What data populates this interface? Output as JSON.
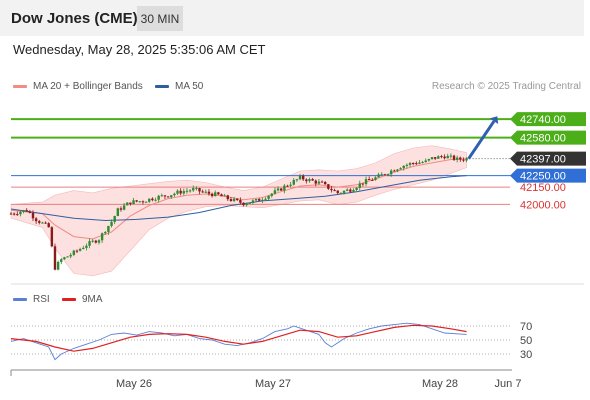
{
  "header": {
    "title": "Dow Jones (CME)",
    "timeframe": "30 MIN"
  },
  "datetime": "Wednesday, May 28, 2025 5:35:06 AM CET",
  "legend": {
    "ma_bb": {
      "label": "MA 20 + Bollinger Bands",
      "color": "#f28b82"
    },
    "ma50": {
      "label": "MA 50",
      "color": "#2f5f9e"
    },
    "credit": "Research © 2025 Trading Central"
  },
  "rsi_legend": {
    "rsi": {
      "label": "RSI",
      "color": "#5b7fd6"
    },
    "ma9": {
      "label": "9MA",
      "color": "#e02020"
    }
  },
  "colors": {
    "candle_up": "#2e8b2e",
    "candle_down": "#8b1a1a",
    "band_fill": "#fde0e0",
    "resistance_line": "#4caf1a",
    "pivot_line": "#2f6fd6",
    "support_line": "#e88080",
    "current_label": "#333333",
    "arrow": "#2f5fae"
  },
  "chart_data": [
    {
      "type": "candlestick",
      "x_labels": [
        "May 26",
        "May 27",
        "May 28",
        "Jun 7"
      ],
      "ylim": [
        41300,
        42950
      ],
      "current_price": {
        "value": 42397.0,
        "label": "42397.00"
      },
      "levels": [
        {
          "value": 42740,
          "label": "42740.00",
          "kind": "resistance"
        },
        {
          "value": 42580,
          "label": "42580.00",
          "kind": "resistance"
        },
        {
          "value": 42250,
          "label": "42250.00",
          "kind": "pivot"
        },
        {
          "value": 42150,
          "label": "42150.00",
          "kind": "support"
        },
        {
          "value": 42000,
          "label": "42000.00",
          "kind": "support"
        }
      ],
      "close_path": [
        [
          0,
          41920
        ],
        [
          5,
          41950
        ],
        [
          8,
          41870
        ],
        [
          12,
          41800
        ],
        [
          14,
          41450
        ],
        [
          16,
          41520
        ],
        [
          20,
          41580
        ],
        [
          24,
          41650
        ],
        [
          28,
          41700
        ],
        [
          30,
          41780
        ],
        [
          32,
          41850
        ],
        [
          34,
          41950
        ],
        [
          38,
          42020
        ],
        [
          42,
          42030
        ],
        [
          46,
          42060
        ],
        [
          50,
          42080
        ],
        [
          54,
          42110
        ],
        [
          58,
          42130
        ],
        [
          62,
          42100
        ],
        [
          66,
          42080
        ],
        [
          70,
          42040
        ],
        [
          74,
          42010
        ],
        [
          78,
          42030
        ],
        [
          82,
          42080
        ],
        [
          85,
          42120
        ],
        [
          88,
          42170
        ],
        [
          92,
          42230
        ],
        [
          95,
          42210
        ],
        [
          99,
          42180
        ],
        [
          100,
          42160
        ],
        [
          104,
          42100
        ],
        [
          108,
          42130
        ],
        [
          112,
          42190
        ],
        [
          116,
          42230
        ],
        [
          120,
          42280
        ],
        [
          124,
          42330
        ],
        [
          128,
          42360
        ],
        [
          132,
          42370
        ],
        [
          134,
          42400
        ],
        [
          138,
          42420
        ],
        [
          142,
          42390
        ],
        [
          145,
          42397
        ]
      ],
      "ma50_path": [
        [
          0,
          41960
        ],
        [
          10,
          41920
        ],
        [
          20,
          41880
        ],
        [
          30,
          41860
        ],
        [
          40,
          41870
        ],
        [
          50,
          41890
        ],
        [
          60,
          41930
        ],
        [
          70,
          41990
        ],
        [
          80,
          42030
        ],
        [
          90,
          42050
        ],
        [
          100,
          42070
        ],
        [
          110,
          42110
        ],
        [
          120,
          42160
        ],
        [
          130,
          42210
        ],
        [
          140,
          42240
        ],
        [
          145,
          42250
        ]
      ],
      "ma20_path": [
        [
          0,
          41950
        ],
        [
          10,
          41920
        ],
        [
          14,
          41820
        ],
        [
          20,
          41720
        ],
        [
          26,
          41700
        ],
        [
          32,
          41760
        ],
        [
          38,
          41900
        ],
        [
          44,
          41990
        ],
        [
          50,
          42050
        ],
        [
          56,
          42080
        ],
        [
          62,
          42090
        ],
        [
          68,
          42070
        ],
        [
          74,
          42040
        ],
        [
          80,
          42060
        ],
        [
          86,
          42110
        ],
        [
          92,
          42160
        ],
        [
          98,
          42170
        ],
        [
          104,
          42150
        ],
        [
          110,
          42170
        ],
        [
          116,
          42220
        ],
        [
          122,
          42280
        ],
        [
          128,
          42330
        ],
        [
          134,
          42360
        ],
        [
          140,
          42390
        ],
        [
          145,
          42395
        ]
      ],
      "bb_upper": [
        [
          0,
          42000
        ],
        [
          10,
          42020
        ],
        [
          14,
          42080
        ],
        [
          20,
          42120
        ],
        [
          26,
          42100
        ],
        [
          32,
          42140
        ],
        [
          38,
          42160
        ],
        [
          44,
          42180
        ],
        [
          50,
          42200
        ],
        [
          56,
          42210
        ],
        [
          62,
          42190
        ],
        [
          68,
          42150
        ],
        [
          74,
          42120
        ],
        [
          80,
          42150
        ],
        [
          86,
          42220
        ],
        [
          92,
          42290
        ],
        [
          98,
          42300
        ],
        [
          104,
          42290
        ],
        [
          110,
          42310
        ],
        [
          116,
          42360
        ],
        [
          122,
          42440
        ],
        [
          128,
          42490
        ],
        [
          134,
          42510
        ],
        [
          140,
          42480
        ],
        [
          145,
          42450
        ]
      ],
      "bb_lower": [
        [
          0,
          41880
        ],
        [
          10,
          41800
        ],
        [
          14,
          41620
        ],
        [
          20,
          41400
        ],
        [
          26,
          41380
        ],
        [
          32,
          41420
        ],
        [
          38,
          41600
        ],
        [
          44,
          41780
        ],
        [
          50,
          41880
        ],
        [
          56,
          41940
        ],
        [
          62,
          41980
        ],
        [
          68,
          41990
        ],
        [
          74,
          41980
        ],
        [
          80,
          41970
        ],
        [
          86,
          42000
        ],
        [
          92,
          42030
        ],
        [
          98,
          42040
        ],
        [
          104,
          42000
        ],
        [
          110,
          42020
        ],
        [
          116,
          42080
        ],
        [
          122,
          42130
        ],
        [
          128,
          42170
        ],
        [
          134,
          42210
        ],
        [
          140,
          42270
        ],
        [
          145,
          42320
        ]
      ],
      "projection": {
        "from": [
          145,
          42397
        ],
        "to": [
          155,
          42740
        ]
      }
    },
    {
      "type": "line",
      "title": "RSI",
      "yticks": [
        70,
        50,
        30
      ],
      "ylim": [
        10,
        90
      ],
      "series": [
        {
          "name": "RSI",
          "values": [
            [
              0,
              48
            ],
            [
              4,
              52
            ],
            [
              8,
              46
            ],
            [
              12,
              40
            ],
            [
              14,
              22
            ],
            [
              16,
              30
            ],
            [
              20,
              38
            ],
            [
              24,
              44
            ],
            [
              28,
              50
            ],
            [
              32,
              58
            ],
            [
              36,
              60
            ],
            [
              40,
              57
            ],
            [
              44,
              62
            ],
            [
              48,
              60
            ],
            [
              52,
              56
            ],
            [
              56,
              58
            ],
            [
              60,
              52
            ],
            [
              64,
              50
            ],
            [
              68,
              44
            ],
            [
              72,
              42
            ],
            [
              76,
              46
            ],
            [
              80,
              52
            ],
            [
              84,
              62
            ],
            [
              88,
              66
            ],
            [
              90,
              70
            ],
            [
              94,
              64
            ],
            [
              98,
              58
            ],
            [
              100,
              46
            ],
            [
              102,
              40
            ],
            [
              106,
              52
            ],
            [
              110,
              60
            ],
            [
              114,
              66
            ],
            [
              118,
              70
            ],
            [
              122,
              72
            ],
            [
              126,
              74
            ],
            [
              130,
              72
            ],
            [
              134,
              66
            ],
            [
              138,
              60
            ],
            [
              145,
              58
            ]
          ]
        },
        {
          "name": "9MA",
          "values": [
            [
              0,
              52
            ],
            [
              8,
              48
            ],
            [
              14,
              40
            ],
            [
              20,
              34
            ],
            [
              26,
              38
            ],
            [
              32,
              46
            ],
            [
              38,
              54
            ],
            [
              44,
              58
            ],
            [
              50,
              59
            ],
            [
              56,
              58
            ],
            [
              62,
              54
            ],
            [
              68,
              48
            ],
            [
              74,
              44
            ],
            [
              80,
              48
            ],
            [
              86,
              56
            ],
            [
              92,
              64
            ],
            [
              98,
              62
            ],
            [
              104,
              54
            ],
            [
              110,
              56
            ],
            [
              116,
              62
            ],
            [
              122,
              68
            ],
            [
              128,
              71
            ],
            [
              134,
              70
            ],
            [
              140,
              66
            ],
            [
              145,
              62
            ]
          ]
        }
      ]
    }
  ]
}
